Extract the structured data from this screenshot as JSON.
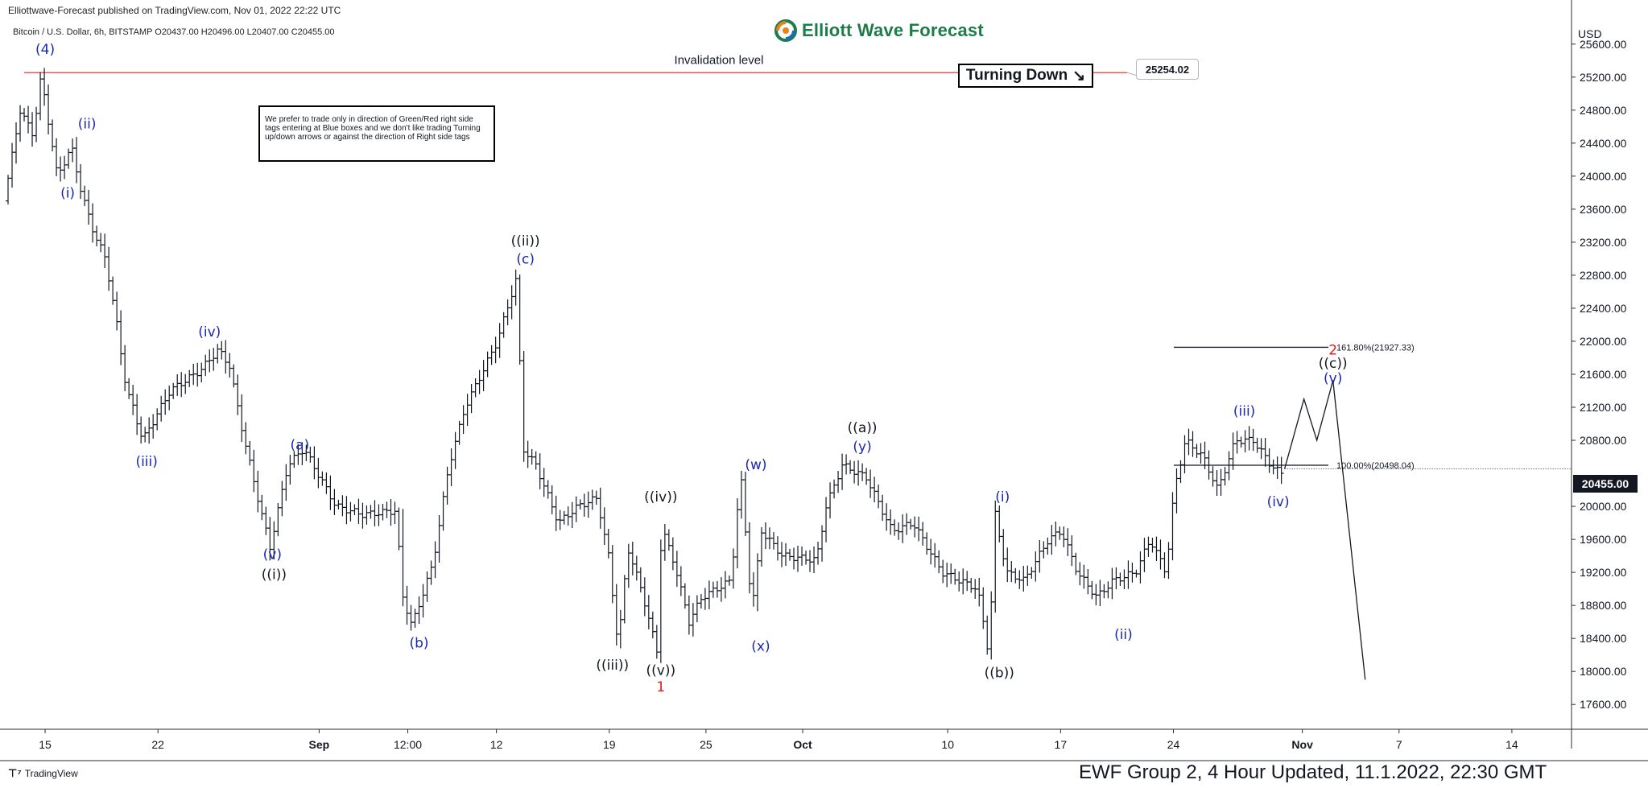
{
  "header": {
    "publisher": "Elliottwave-Forecast published on TradingView.com, Nov 01, 2022 22:22 UTC",
    "symbol_line": "Bitcoin / U.S. Dollar, 6h, BITSTAMP  O20437.00  H20496.00  L20407.00  C20455.00",
    "brand": "Elliott Wave Forecast",
    "currency": "USD"
  },
  "footer": {
    "logo_text": "TradingView",
    "caption": "EWF Group 2, 4 Hour Updated, 11.1.2022, 22:30 GMT"
  },
  "overlays": {
    "note": "We prefer to trade only in direction of Green/Red right side tags entering at Blue boxes and we don't like trading Turning up/down arrows or against the direction of Right side tags",
    "turning_label": "Turning Down",
    "turning_arrow": "↘",
    "invalidation_label": "Invalidation level",
    "invalidation_price": "25254.02",
    "current_price": "20455.00"
  },
  "colors": {
    "bars": "#131722",
    "wave_blue": "#1a27b0",
    "wave_black": "#131722",
    "wave_red": "#e01919",
    "invalidation_line": "#e53935",
    "brand_green": "#1e7c4a"
  },
  "chart_data": {
    "type": "ohlc",
    "symbol": "Bitcoin / U.S. Dollar",
    "exchange": "BITSTAMP",
    "interval": "6h",
    "ylim": [
      17300,
      26000
    ],
    "y_ticks": [
      25600,
      25200,
      24800,
      24400,
      24000,
      23600,
      23200,
      22800,
      22400,
      22000,
      21600,
      21200,
      20800,
      20000,
      19600,
      19200,
      18800,
      18400,
      18000,
      17600
    ],
    "y_tick_labels": [
      "25600.00",
      "25200.00",
      "24800.00",
      "24400.00",
      "24000.00",
      "23600.00",
      "23200.00",
      "22800.00",
      "22400.00",
      "22000.00",
      "21600.00",
      "21200.00",
      "20800.00",
      "20000.00",
      "19600.00",
      "19200.00",
      "18800.00",
      "18400.00",
      "18000.00",
      "17600.00"
    ],
    "x_axis": [
      "Aug 13",
      "Nov 8"
    ],
    "x_ticks": [
      {
        "day": 2.3,
        "label": "15"
      },
      {
        "day": 9.3,
        "label": "22"
      },
      {
        "day": 19.3,
        "label": "Sep"
      },
      {
        "day": 24.8,
        "label": "12:00"
      },
      {
        "day": 30.3,
        "label": "12"
      },
      {
        "day": 37.3,
        "label": "19"
      },
      {
        "day": 43.3,
        "label": "25"
      },
      {
        "day": 49.3,
        "label": "Oct"
      },
      {
        "day": 58.3,
        "label": "10"
      },
      {
        "day": 65.3,
        "label": "17"
      },
      {
        "day": 72.3,
        "label": "24"
      },
      {
        "day": 80.3,
        "label": "Nov"
      },
      {
        "day": 86.3,
        "label": "7"
      },
      {
        "day": 93.3,
        "label": "14"
      }
    ],
    "price_path": [
      [
        0,
        23700
      ],
      [
        1.0,
        24800
      ],
      [
        1.8,
        24500
      ],
      [
        2.3,
        25214
      ],
      [
        3.3,
        24000
      ],
      [
        4.2,
        24350
      ],
      [
        4.8,
        23800
      ],
      [
        5.6,
        23300
      ],
      [
        6.3,
        23000
      ],
      [
        7.0,
        22200
      ],
      [
        7.6,
        21400
      ],
      [
        8.0,
        21200
      ],
      [
        8.6,
        20800
      ],
      [
        10.3,
        21400
      ],
      [
        12.2,
        21650
      ],
      [
        13.3,
        21900
      ],
      [
        14.0,
        21700
      ],
      [
        14.7,
        21000
      ],
      [
        15.5,
        20300
      ],
      [
        16.5,
        19500
      ],
      [
        17.6,
        20500
      ],
      [
        18.6,
        20700
      ],
      [
        20.6,
        20000
      ],
      [
        22.3,
        19900
      ],
      [
        24.4,
        19950
      ],
      [
        24.6,
        19000
      ],
      [
        25.3,
        18550
      ],
      [
        26.6,
        19300
      ],
      [
        27.6,
        20500
      ],
      [
        28.6,
        21200
      ],
      [
        29.6,
        21600
      ],
      [
        30.6,
        22000
      ],
      [
        31.8,
        22770
      ],
      [
        32.2,
        20700
      ],
      [
        33.0,
        20500
      ],
      [
        34.4,
        19800
      ],
      [
        35.6,
        20000
      ],
      [
        36.8,
        20100
      ],
      [
        37.5,
        19400
      ],
      [
        38.1,
        18300
      ],
      [
        38.7,
        19500
      ],
      [
        39.6,
        18950
      ],
      [
        40.5,
        18250
      ],
      [
        40.8,
        19750
      ],
      [
        41.6,
        19300
      ],
      [
        42.5,
        18600
      ],
      [
        43.3,
        18900
      ],
      [
        45.1,
        19100
      ],
      [
        45.7,
        20400
      ],
      [
        46.4,
        18750
      ],
      [
        47.0,
        19700
      ],
      [
        48.3,
        19400
      ],
      [
        50.4,
        19350
      ],
      [
        51.0,
        20000
      ],
      [
        52.0,
        20500
      ],
      [
        53.5,
        20350
      ],
      [
        55.1,
        19700
      ],
      [
        56.4,
        19800
      ],
      [
        58.2,
        19200
      ],
      [
        60.4,
        19000
      ],
      [
        61.1,
        18200
      ],
      [
        61.5,
        19900
      ],
      [
        62.2,
        19200
      ],
      [
        63.3,
        19100
      ],
      [
        64.8,
        19600
      ],
      [
        65.6,
        19700
      ],
      [
        66.6,
        19200
      ],
      [
        67.8,
        18900
      ],
      [
        68.8,
        19100
      ],
      [
        70.2,
        19200
      ],
      [
        71.1,
        19600
      ],
      [
        72.1,
        19200
      ],
      [
        72.6,
        20200
      ],
      [
        73.3,
        20800
      ],
      [
        74.4,
        20600
      ],
      [
        75.3,
        20200
      ],
      [
        76.4,
        20800
      ],
      [
        77.5,
        20800
      ],
      [
        78.6,
        20500
      ],
      [
        79.2,
        20400
      ]
    ],
    "projection_path": [
      [
        79.2,
        20455
      ],
      [
        80.4,
        21300
      ],
      [
        81.2,
        20800
      ],
      [
        82.2,
        21525
      ],
      [
        84.2,
        17900
      ]
    ],
    "invalidation_level": 25254.02,
    "invalidation_label": "Invalidation level",
    "fib_levels": [
      {
        "label": "161.80%(21927.33)",
        "value": 21927.33
      },
      {
        "label": "100.00%(20498.04)",
        "value": 20498.04
      }
    ],
    "current_price": 20455.0,
    "wave_labels": [
      {
        "text": "(4)",
        "day": 2.3,
        "price": 25480,
        "color": "blue"
      },
      {
        "text": "(ii)",
        "day": 4.9,
        "price": 24580,
        "color": "blue"
      },
      {
        "text": "(i)",
        "day": 3.7,
        "price": 23740,
        "color": "blue"
      },
      {
        "text": "(iii)",
        "day": 8.6,
        "price": 20490,
        "color": "blue"
      },
      {
        "text": "(iv)",
        "day": 12.5,
        "price": 22060,
        "color": "blue"
      },
      {
        "text": "(a)",
        "day": 18.1,
        "price": 20690,
        "color": "blue"
      },
      {
        "text": "(v)",
        "day": 16.4,
        "price": 19360,
        "color": "blue"
      },
      {
        "text": "((i))",
        "day": 16.5,
        "price": 19120,
        "color": "black"
      },
      {
        "text": "(b)",
        "day": 25.5,
        "price": 18290,
        "color": "blue"
      },
      {
        "text": "((ii))",
        "day": 32.1,
        "price": 23160,
        "color": "black"
      },
      {
        "text": "(c)",
        "day": 32.1,
        "price": 22940,
        "color": "blue"
      },
      {
        "text": "((iii))",
        "day": 37.5,
        "price": 18020,
        "color": "black"
      },
      {
        "text": "((iv))",
        "day": 40.5,
        "price": 20060,
        "color": "black"
      },
      {
        "text": "((v))",
        "day": 40.5,
        "price": 17960,
        "color": "black"
      },
      {
        "text": "1",
        "day": 40.5,
        "price": 17760,
        "color": "red"
      },
      {
        "text": "(w)",
        "day": 46.4,
        "price": 20450,
        "color": "blue"
      },
      {
        "text": "(x)",
        "day": 46.7,
        "price": 18250,
        "color": "blue"
      },
      {
        "text": "((a))",
        "day": 53.0,
        "price": 20900,
        "color": "black"
      },
      {
        "text": "(y)",
        "day": 53.0,
        "price": 20670,
        "color": "blue"
      },
      {
        "text": "(i)",
        "day": 61.7,
        "price": 20060,
        "color": "blue"
      },
      {
        "text": "((b))",
        "day": 61.5,
        "price": 17930,
        "color": "black"
      },
      {
        "text": "(ii)",
        "day": 69.2,
        "price": 18390,
        "color": "blue"
      },
      {
        "text": "(iii)",
        "day": 76.7,
        "price": 21100,
        "color": "blue"
      },
      {
        "text": "(iv)",
        "day": 78.8,
        "price": 20000,
        "color": "blue"
      },
      {
        "text": "2",
        "day": 82.2,
        "price": 21840,
        "color": "red"
      },
      {
        "text": "((c))",
        "day": 82.2,
        "price": 21680,
        "color": "black"
      },
      {
        "text": "(v)",
        "day": 82.2,
        "price": 21500,
        "color": "blue"
      }
    ]
  }
}
